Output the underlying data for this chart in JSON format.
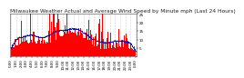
{
  "title": "Milwaukee Weather Actual and Average Wind Speed by Minute mph (Last 24 Hours)",
  "title_fontsize": 4.2,
  "background_color": "#ffffff",
  "plot_bg_color": "#ffffff",
  "bar_color": "#ff0000",
  "line_color": "#0000cc",
  "line_style": "dotted",
  "line_width": 0.7,
  "line_marker": "o",
  "line_marker_size": 0.8,
  "n_points": 1440,
  "ylim": [
    0,
    25
  ],
  "yticks": [
    5,
    10,
    15,
    20,
    25
  ],
  "ylabel_fontsize": 3.0,
  "xlabel_fontsize": 2.8,
  "grid_color": "#aaaaaa",
  "grid_style": "dotted",
  "grid_alpha": 1.0,
  "n_xticks": 25,
  "bar_width": 1.0,
  "seed": 42
}
